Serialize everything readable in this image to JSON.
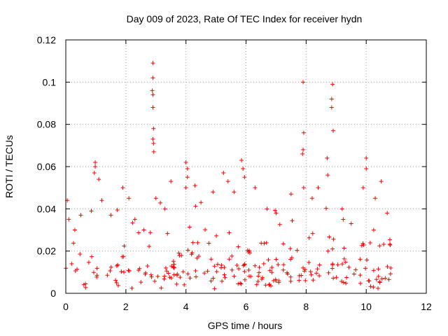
{
  "chart_data": {
    "type": "scatter",
    "title": "Day 009 of 2023, Rate Of TEC Index for receiver hydn",
    "xlabel": "GPS time / hours",
    "ylabel": "ROTI / TECUs",
    "xlim": [
      0,
      12
    ],
    "ylim": [
      0,
      0.12
    ],
    "grid": true,
    "xticks": [
      0,
      2,
      4,
      6,
      8,
      10,
      12
    ],
    "xtick_labels": [
      "0",
      "2",
      "4",
      "6",
      "8",
      "10",
      "12"
    ],
    "yticks": [
      0,
      0.02,
      0.04,
      0.06,
      0.08,
      0.1,
      0.12
    ],
    "ytick_labels": [
      "0",
      "0.02",
      "0.04",
      "0.06",
      "0.08",
      "0.1",
      "0.12"
    ],
    "marker": "+",
    "series_color": "#ff0000",
    "data_x_range": [
      0,
      10.85
    ],
    "series": [
      {
        "name": "ROTI",
        "points": [
          [
            0.05,
            0.044
          ],
          [
            0.1,
            0.035
          ],
          [
            0.3,
            0.03
          ],
          [
            0.5,
            0.037
          ],
          [
            0.98,
            0.062
          ],
          [
            0.98,
            0.06
          ],
          [
            0.95,
            0.057
          ],
          [
            1.1,
            0.054
          ],
          [
            0.85,
            0.039
          ],
          [
            1.2,
            0.044
          ],
          [
            1.5,
            0.037
          ],
          [
            1.9,
            0.05
          ],
          [
            2.1,
            0.045
          ],
          [
            2.3,
            0.035
          ],
          [
            2.6,
            0.03
          ],
          [
            2.9,
            0.109
          ],
          [
            2.9,
            0.102
          ],
          [
            2.88,
            0.096
          ],
          [
            2.9,
            0.094
          ],
          [
            2.9,
            0.088
          ],
          [
            2.92,
            0.078
          ],
          [
            2.9,
            0.073
          ],
          [
            2.92,
            0.071
          ],
          [
            2.93,
            0.067
          ],
          [
            3.0,
            0.045
          ],
          [
            3.3,
            0.04
          ],
          [
            3.5,
            0.053
          ],
          [
            4.0,
            0.062
          ],
          [
            4.05,
            0.059
          ],
          [
            4.05,
            0.055
          ],
          [
            4.0,
            0.05
          ],
          [
            4.3,
            0.051
          ],
          [
            4.5,
            0.043
          ],
          [
            4.9,
            0.048
          ],
          [
            5.25,
            0.057
          ],
          [
            5.4,
            0.053
          ],
          [
            5.6,
            0.048
          ],
          [
            5.85,
            0.063
          ],
          [
            5.9,
            0.059
          ],
          [
            5.95,
            0.055
          ],
          [
            6.3,
            0.05
          ],
          [
            6.7,
            0.04
          ],
          [
            7.0,
            0.038
          ],
          [
            7.5,
            0.047
          ],
          [
            7.9,
            0.1
          ],
          [
            7.92,
            0.076
          ],
          [
            7.9,
            0.068
          ],
          [
            7.88,
            0.066
          ],
          [
            7.92,
            0.05
          ],
          [
            8.2,
            0.045
          ],
          [
            8.4,
            0.05
          ],
          [
            8.7,
            0.064
          ],
          [
            8.72,
            0.056
          ],
          [
            8.88,
            0.099
          ],
          [
            8.85,
            0.092
          ],
          [
            8.85,
            0.088
          ],
          [
            8.9,
            0.077
          ],
          [
            9.2,
            0.04
          ],
          [
            9.5,
            0.033
          ],
          [
            9.9,
            0.05
          ],
          [
            10.0,
            0.064
          ],
          [
            10.0,
            0.059
          ],
          [
            10.3,
            0.045
          ],
          [
            10.5,
            0.053
          ],
          [
            10.7,
            0.038
          ]
        ]
      }
    ]
  }
}
